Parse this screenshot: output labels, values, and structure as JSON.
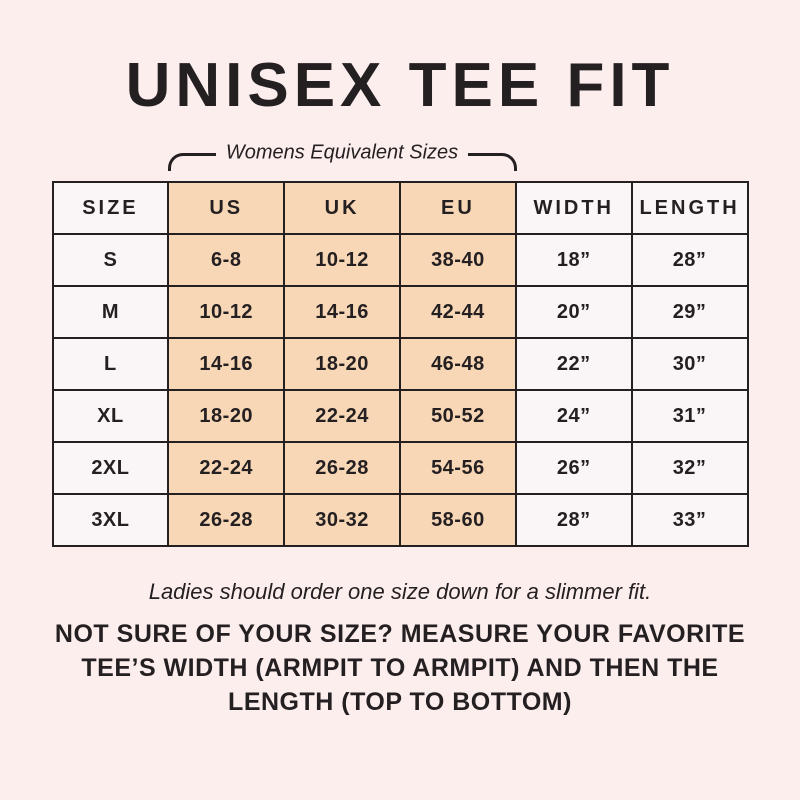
{
  "title": "UNISEX TEE FIT",
  "bracket_label": "Womens Equivalent Sizes",
  "chart_data": {
    "type": "table",
    "title": "UNISEX TEE FIT",
    "columns": [
      "SIZE",
      "US",
      "UK",
      "EU",
      "WIDTH",
      "LENGTH"
    ],
    "highlighted_columns": [
      "US",
      "UK",
      "EU"
    ],
    "highlight_label": "Womens Equivalent Sizes",
    "rows": [
      [
        "S",
        "6-8",
        "10-12",
        "38-40",
        "18”",
        "28”"
      ],
      [
        "M",
        "10-12",
        "14-16",
        "42-44",
        "20”",
        "29”"
      ],
      [
        "L",
        "14-16",
        "18-20",
        "46-48",
        "22”",
        "30”"
      ],
      [
        "XL",
        "18-20",
        "22-24",
        "50-52",
        "24”",
        "31”"
      ],
      [
        "2XL",
        "22-24",
        "26-28",
        "54-56",
        "26”",
        "32”"
      ],
      [
        "3XL",
        "26-28",
        "30-32",
        "58-60",
        "28”",
        "33”"
      ]
    ]
  },
  "notes": {
    "italic_note": "Ladies should order one size down for a slimmer fit.",
    "bold_note_lines": [
      "NOT SURE OF YOUR SIZE? MEASURE YOUR FAVORITE",
      "TEE’S WIDTH (ARMPIT TO ARMPIT) AND THEN THE",
      "LENGTH (TOP TO BOTTOM)"
    ]
  },
  "colors": {
    "background": "#fdeeee",
    "cell_light": "#faf5f6",
    "cell_highlight": "#f8d7b6",
    "border": "#241f21",
    "text": "#241f21"
  }
}
